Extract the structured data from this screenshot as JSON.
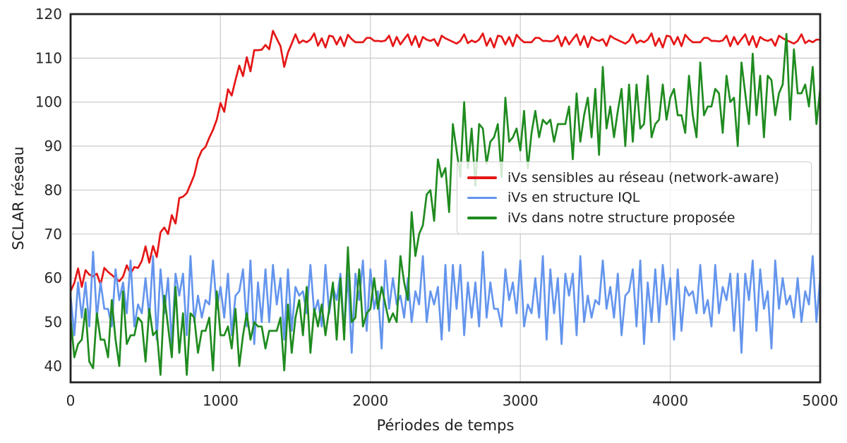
{
  "figure": {
    "background": "#ffffff",
    "grid_color": "#cbcbcb",
    "spine_color": "#222222",
    "text_color": "#262626"
  },
  "chart_data": {
    "type": "line",
    "title": "",
    "xlabel": "Périodes de temps",
    "ylabel": "SCLAR réseau",
    "xlim": [
      0,
      5000
    ],
    "ylim": [
      36.3,
      120
    ],
    "x_ticks": [
      0,
      1000,
      2000,
      3000,
      4000,
      5000
    ],
    "y_ticks": [
      40,
      50,
      60,
      70,
      80,
      90,
      100,
      110,
      120
    ],
    "grid": true,
    "legend_position": "center-right",
    "x": {
      "start": 0,
      "step": 25,
      "count": 201
    },
    "series": [
      {
        "name": "iVs sensibles au réseau (network-aware)",
        "color": "#e51616",
        "values": [
          57,
          58.9,
          62.2,
          58,
          61.8,
          60.8,
          60.4,
          61,
          58.5,
          62.3,
          61.4,
          60.7,
          60,
          59.3,
          60.3,
          62.9,
          61,
          62.5,
          62.3,
          63.9,
          67.2,
          63.5,
          67.3,
          64.8,
          70.4,
          71.5,
          70,
          74.3,
          72.4,
          78.2,
          78.5,
          79.3,
          81.3,
          83.4,
          87,
          89,
          89.8,
          91.9,
          93.7,
          96,
          99.8,
          97.8,
          102.9,
          101.5,
          105,
          108.3,
          105.9,
          110.2,
          107,
          111.8,
          111.8,
          111.9,
          113,
          112,
          116.2,
          114.4,
          112.7,
          108,
          111.3,
          113.3,
          115.4,
          113.4,
          114,
          113.6,
          114.2,
          115.6,
          112.8,
          114.5,
          112.4,
          115.1,
          114.9,
          113.1,
          114.8,
          112.7,
          115.3,
          114.3,
          113.6,
          113.6,
          113.6,
          114.6,
          114.6,
          113.9,
          113.9,
          113.8,
          114,
          115.1,
          112.7,
          114.8,
          113.1,
          114.3,
          115.4,
          113,
          115,
          112.5,
          114.8,
          114.2,
          113.9,
          114.3,
          112.8,
          115.1,
          114.5,
          114.1,
          113.7,
          113.3,
          113.9,
          115.4,
          113.4,
          114,
          113.6,
          114.2,
          115.6,
          112.8,
          114.5,
          112.4,
          115.1,
          114.9,
          113.1,
          114.8,
          112.7,
          115.3,
          114.3,
          113.6,
          113.6,
          113.6,
          114.6,
          114.6,
          113.9,
          113.9,
          113.8,
          114,
          115.1,
          112.7,
          114.8,
          113.1,
          114.3,
          115.4,
          113,
          115,
          112.5,
          114.8,
          114.2,
          113.9,
          114.3,
          112.8,
          115.1,
          114.5,
          114.1,
          113.7,
          113.3,
          113.9,
          115.4,
          113.4,
          114,
          113.6,
          114.2,
          115.6,
          112.8,
          114.5,
          112.4,
          115.1,
          114.9,
          113.1,
          114.8,
          112.7,
          115.3,
          114.3,
          113.6,
          113.6,
          113.6,
          114.6,
          114.6,
          113.9,
          113.9,
          113.8,
          114,
          115.1,
          112.7,
          114.8,
          113.1,
          114.3,
          115.4,
          113,
          115,
          112.5,
          114.8,
          114.2,
          113.9,
          114.3,
          112.8,
          115.1,
          114.5,
          114.1,
          113.7,
          113.3,
          113.9,
          115.4,
          113.4,
          114,
          113.6,
          114.2,
          114.2
        ]
      },
      {
        "name": "iVs en structure IQL",
        "color": "#6495ed",
        "values": [
          56,
          47,
          59,
          51,
          59,
          49,
          66,
          51,
          59,
          53,
          53,
          49,
          62,
          55,
          59,
          52,
          64,
          49,
          54,
          52,
          60,
          51,
          65,
          46,
          62,
          52,
          60,
          45,
          61,
          56,
          61,
          47,
          65,
          50,
          56,
          51,
          55,
          54,
          64,
          53,
          58,
          51,
          61,
          47,
          56,
          57,
          62,
          49,
          64,
          45,
          59,
          50,
          62,
          50,
          63,
          54,
          60,
          46,
          62,
          48,
          58,
          56,
          57,
          52,
          63,
          52,
          55,
          49,
          63,
          52,
          58,
          55,
          61,
          48,
          61,
          43,
          61,
          55,
          64,
          48,
          62,
          53,
          57,
          44,
          64,
          53,
          60,
          54,
          56,
          51,
          60,
          50,
          57,
          54,
          65,
          50,
          57,
          54,
          58,
          46,
          63,
          48,
          63,
          53,
          63,
          47,
          59,
          51,
          59,
          49,
          66,
          51,
          59,
          53,
          53,
          49,
          62,
          55,
          59,
          52,
          64,
          49,
          54,
          52,
          60,
          51,
          65,
          46,
          62,
          52,
          60,
          45,
          61,
          56,
          61,
          47,
          65,
          50,
          56,
          51,
          55,
          54,
          64,
          53,
          58,
          51,
          61,
          47,
          56,
          57,
          62,
          49,
          64,
          45,
          59,
          50,
          62,
          50,
          63,
          54,
          60,
          46,
          62,
          48,
          58,
          56,
          57,
          52,
          63,
          52,
          55,
          49,
          63,
          52,
          58,
          55,
          61,
          48,
          61,
          43,
          61,
          55,
          64,
          48,
          62,
          53,
          57,
          44,
          64,
          53,
          60,
          54,
          56,
          51,
          60,
          50,
          57,
          54,
          65,
          50,
          60
        ]
      },
      {
        "name": "iVs dans notre structure proposée",
        "color": "#1f8b1f",
        "values": [
          51,
          42,
          45,
          46,
          53,
          41,
          39.5,
          52,
          46,
          46,
          42,
          55,
          46,
          40,
          57,
          45,
          47,
          47,
          51,
          50,
          41,
          53,
          47,
          48,
          38,
          56,
          49,
          42,
          58,
          43,
          52,
          38,
          52,
          51,
          43,
          48,
          48,
          51,
          39,
          57,
          47,
          47,
          49,
          44,
          53,
          40,
          47,
          52,
          46,
          50,
          49,
          49,
          44,
          48,
          48,
          48,
          51,
          39,
          54,
          43,
          51,
          55,
          47,
          58,
          43,
          53,
          49,
          54,
          47,
          53,
          59,
          46,
          60,
          46,
          67,
          50,
          51,
          62,
          49,
          52,
          53,
          60,
          53,
          58,
          54,
          50,
          52,
          50,
          65,
          59,
          55,
          75,
          65,
          70,
          72,
          79,
          80,
          73,
          87,
          83,
          85,
          75,
          95,
          89,
          83,
          100,
          85,
          94,
          81,
          95,
          94,
          86,
          91,
          92,
          95,
          83,
          101,
          91,
          92,
          94,
          89,
          98,
          85,
          93,
          98,
          92,
          96,
          95,
          96,
          91,
          95,
          95,
          95,
          99,
          87,
          102,
          91,
          97,
          101,
          92,
          103,
          88,
          108,
          94,
          99,
          92,
          98,
          103,
          90,
          104,
          91,
          104,
          94,
          95,
          106,
          92,
          95,
          96,
          104,
          96,
          101,
          103,
          97,
          97,
          93,
          106,
          97,
          92,
          109,
          97,
          99,
          99,
          103,
          102,
          93,
          106,
          100,
          101,
          90,
          109,
          102,
          95,
          111,
          97,
          106,
          92,
          106,
          105,
          97,
          102,
          104,
          115.5,
          96,
          112,
          102,
          102,
          104,
          99,
          108,
          95,
          103
        ]
      }
    ]
  }
}
